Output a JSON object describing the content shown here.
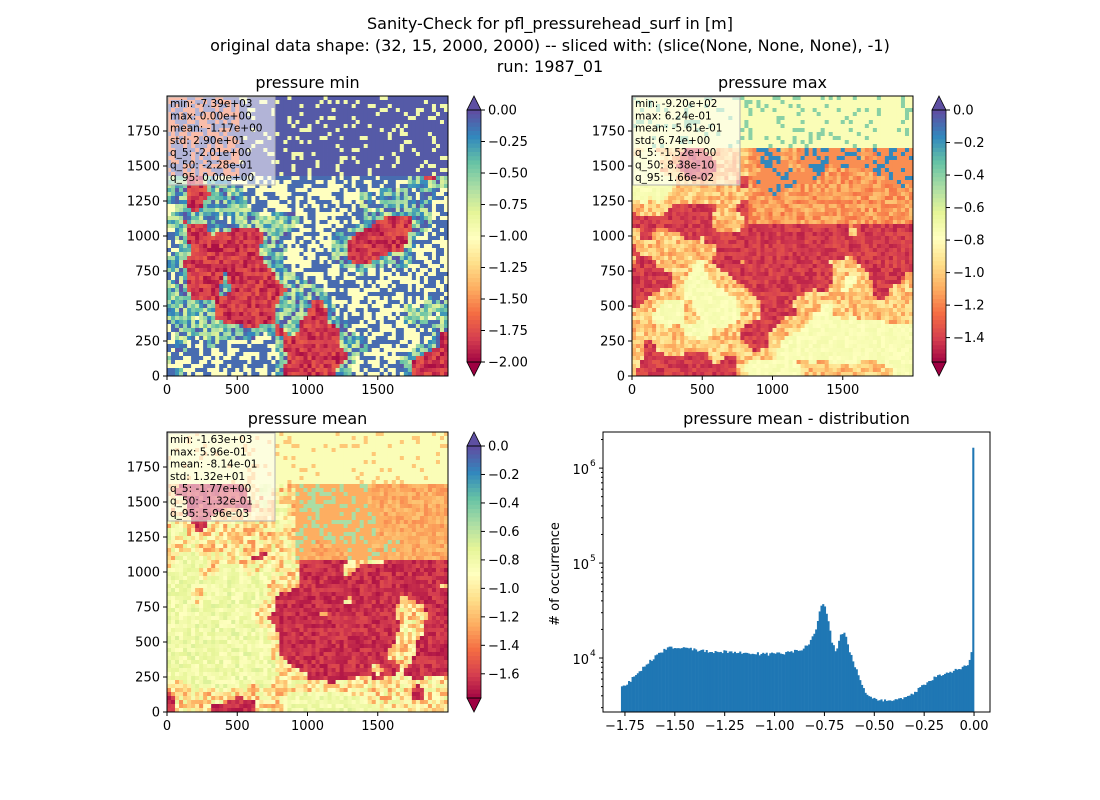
{
  "figure": {
    "title_lines": [
      "Sanity-Check for pfl_pressurehead_surf in [m]",
      "original data shape: (32, 15, 2000, 2000) -- sliced with: (slice(None, None, None), -1)",
      "run: 1987_01"
    ]
  },
  "chart_data": [
    {
      "type": "heatmap",
      "title": "pressure min",
      "x_ticks": [
        "0",
        "500",
        "1000",
        "1500"
      ],
      "y_ticks": [
        "0",
        "250",
        "500",
        "750",
        "1000",
        "1250",
        "1500",
        "1750"
      ],
      "xlim": [
        0,
        2000
      ],
      "ylim": [
        0,
        2000
      ],
      "colorbar": {
        "vmin": -2.0,
        "vmax": 0.0,
        "ticks": [
          "0.00",
          "−0.25",
          "−0.50",
          "−0.75",
          "−1.00",
          "−1.25",
          "−1.50",
          "−1.75",
          "−2.00"
        ],
        "extend": "both",
        "cmap": "Spectral"
      },
      "stats": [
        "min: -7.39e+03",
        "max: 0.00e+00",
        "mean: -1.17e+00",
        "std: 2.90e+01",
        "q_5: -2.01e+00",
        "q_50: -2.28e-01",
        "q_95: 0.00e+00"
      ]
    },
    {
      "type": "heatmap",
      "title": "pressure max",
      "x_ticks": [
        "0",
        "500",
        "1000",
        "1500"
      ],
      "y_ticks": [
        "0",
        "250",
        "500",
        "750",
        "1000",
        "1250",
        "1500",
        "1750"
      ],
      "xlim": [
        0,
        2000
      ],
      "ylim": [
        0,
        2000
      ],
      "colorbar": {
        "vmin": -1.55,
        "vmax": 0.0,
        "ticks": [
          "0.0",
          "−0.2",
          "−0.4",
          "−0.6",
          "−0.8",
          "−1.0",
          "−1.2",
          "−1.4"
        ],
        "extend": "both",
        "cmap": "Spectral"
      },
      "stats": [
        "min: -9.20e+02",
        "max: 6.24e-01",
        "mean: -5.61e-01",
        "std: 6.74e+00",
        "q_5: -1.52e+00",
        "q_50: 8.38e-10",
        "q_95: 1.66e-02"
      ]
    },
    {
      "type": "heatmap",
      "title": "pressure mean",
      "x_ticks": [
        "0",
        "500",
        "1000",
        "1500"
      ],
      "y_ticks": [
        "0",
        "250",
        "500",
        "750",
        "1000",
        "1250",
        "1500",
        "1750"
      ],
      "xlim": [
        0,
        2000
      ],
      "ylim": [
        0,
        2000
      ],
      "colorbar": {
        "vmin": -1.77,
        "vmax": 0.0,
        "ticks": [
          "0.0",
          "−0.2",
          "−0.4",
          "−0.6",
          "−0.8",
          "−1.0",
          "−1.2",
          "−1.4",
          "−1.6"
        ],
        "extend": "both",
        "cmap": "Spectral"
      },
      "stats": [
        "min: -1.63e+03",
        "max: 5.96e-01",
        "mean: -8.14e-01",
        "std: 1.32e+01",
        "q_5: -1.77e+00",
        "q_50: -1.32e-01",
        "q_95: 5.96e-03"
      ]
    },
    {
      "type": "bar",
      "title": "pressure mean - distribution",
      "ylabel": "# of occurrence",
      "x_ticks": [
        "−1.75",
        "−1.50",
        "−1.25",
        "−1.00",
        "−0.75",
        "−0.50",
        "−0.25",
        "0.00"
      ],
      "y_ticks": [
        "10",
        "10",
        "10"
      ],
      "y_tick_exponents": [
        "4",
        "5",
        "6"
      ],
      "xlim": [
        -1.86,
        0.08
      ],
      "ylim": [
        2700,
        2400000
      ],
      "yscale": "log",
      "color": "#1f77b4",
      "profile": [
        [
          -1.77,
          4800
        ],
        [
          -1.74,
          5200
        ],
        [
          -1.71,
          6200
        ],
        [
          -1.68,
          7200
        ],
        [
          -1.65,
          8200
        ],
        [
          -1.62,
          9400
        ],
        [
          -1.59,
          10600
        ],
        [
          -1.56,
          11800
        ],
        [
          -1.53,
          12800
        ],
        [
          -1.5,
          13200
        ],
        [
          -1.47,
          12900
        ],
        [
          -1.44,
          12600
        ],
        [
          -1.4,
          12200
        ],
        [
          -1.35,
          11800
        ],
        [
          -1.3,
          11700
        ],
        [
          -1.25,
          11600
        ],
        [
          -1.2,
          11500
        ],
        [
          -1.15,
          11300
        ],
        [
          -1.1,
          11100
        ],
        [
          -1.05,
          11000
        ],
        [
          -1.0,
          11000
        ],
        [
          -0.95,
          11200
        ],
        [
          -0.9,
          11700
        ],
        [
          -0.85,
          12800
        ],
        [
          -0.82,
          15000
        ],
        [
          -0.79,
          21000
        ],
        [
          -0.77,
          34000
        ],
        [
          -0.75,
          37000
        ],
        [
          -0.73,
          24000
        ],
        [
          -0.71,
          14000
        ],
        [
          -0.69,
          11500
        ],
        [
          -0.67,
          17000
        ],
        [
          -0.65,
          19000
        ],
        [
          -0.63,
          13000
        ],
        [
          -0.6,
          8500
        ],
        [
          -0.57,
          5800
        ],
        [
          -0.54,
          4200
        ],
        [
          -0.51,
          3700
        ],
        [
          -0.45,
          3600
        ],
        [
          -0.4,
          3600
        ],
        [
          -0.35,
          3800
        ],
        [
          -0.3,
          4300
        ],
        [
          -0.25,
          5300
        ],
        [
          -0.2,
          6200
        ],
        [
          -0.15,
          6800
        ],
        [
          -0.1,
          7300
        ],
        [
          -0.05,
          8000
        ],
        [
          -0.03,
          8700
        ],
        [
          -0.015,
          10000
        ],
        [
          -0.006,
          20000
        ],
        [
          -0.002,
          1600000
        ]
      ]
    }
  ]
}
